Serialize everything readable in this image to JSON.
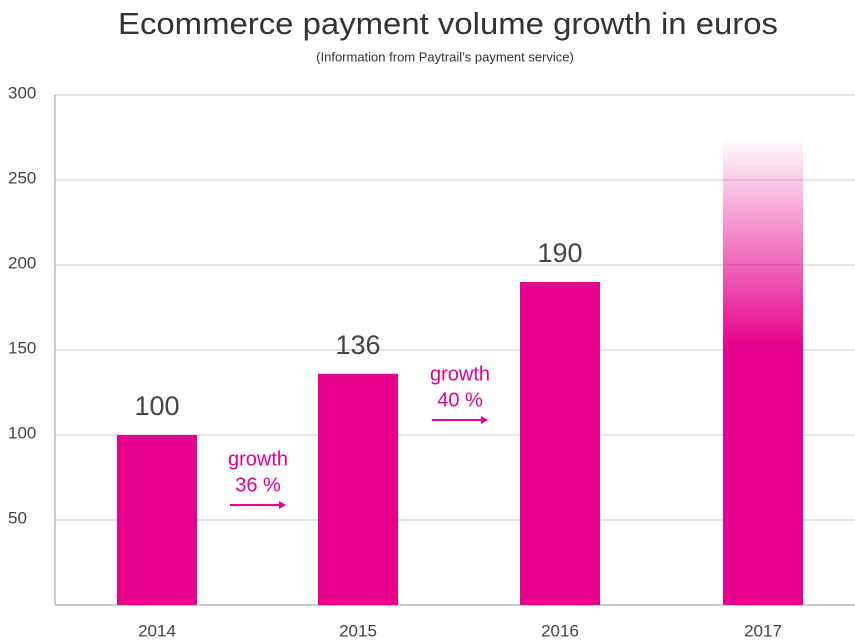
{
  "chart_data": {
    "type": "bar",
    "title": "Ecommerce payment volume growth in euros",
    "subtitle": "(Information from Paytrail’s payment service)",
    "categories": [
      "2014",
      "2015",
      "2016",
      "2017"
    ],
    "values": [
      100,
      136,
      190,
      275
    ],
    "value_labels": [
      "100",
      "136",
      "190",
      null
    ],
    "fade": [
      false,
      false,
      false,
      true
    ],
    "color": "#e6008c",
    "ylim": [
      0,
      300
    ],
    "yticks": [
      50,
      100,
      150,
      200,
      250,
      300
    ],
    "grid": true,
    "annotations": [
      {
        "lines": [
          "growth",
          "36 %"
        ]
      },
      {
        "lines": [
          "growth",
          "40 %"
        ]
      }
    ]
  }
}
